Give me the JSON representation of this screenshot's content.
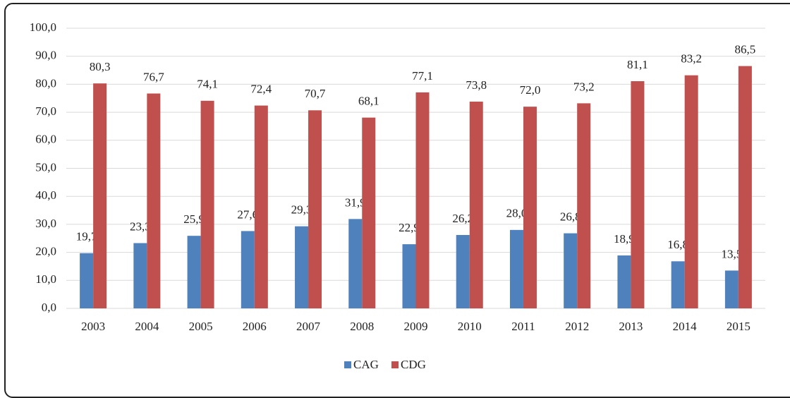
{
  "chart_data": {
    "type": "bar",
    "categories": [
      "2003",
      "2004",
      "2005",
      "2006",
      "2007",
      "2008",
      "2009",
      "2010",
      "2011",
      "2012",
      "2013",
      "2014",
      "2015"
    ],
    "series": [
      {
        "name": "CAG",
        "color": "#4f81bd",
        "values": [
          19.7,
          23.3,
          25.9,
          27.6,
          29.3,
          31.9,
          22.9,
          26.2,
          28.0,
          26.8,
          18.9,
          16.8,
          13.5
        ],
        "value_labels": [
          "19,7",
          "23,3",
          "25,9",
          "27,6",
          "29,3",
          "31,9",
          "22,9",
          "26,2",
          "28,0",
          "26,8",
          "18,9",
          "16,8",
          "13,5"
        ]
      },
      {
        "name": "CDG",
        "color": "#c0504d",
        "values": [
          80.3,
          76.7,
          74.1,
          72.4,
          70.7,
          68.1,
          77.1,
          73.8,
          72.0,
          73.2,
          81.1,
          83.2,
          86.5
        ],
        "value_labels": [
          "80,3",
          "76,7",
          "74,1",
          "72,4",
          "70,7",
          "68,1",
          "77,1",
          "73,8",
          "72,0",
          "73,2",
          "81,1",
          "83,2",
          "86,5"
        ]
      }
    ],
    "ylim": [
      0,
      100
    ],
    "yticks": [
      {
        "value": 0,
        "label": "0,0"
      },
      {
        "value": 10,
        "label": "10,0"
      },
      {
        "value": 20,
        "label": "20,0"
      },
      {
        "value": 30,
        "label": "30,0"
      },
      {
        "value": 40,
        "label": "40,0"
      },
      {
        "value": 50,
        "label": "50,0"
      },
      {
        "value": 60,
        "label": "60,0"
      },
      {
        "value": 70,
        "label": "70,0"
      },
      {
        "value": 80,
        "label": "80,0"
      },
      {
        "value": 90,
        "label": "90,0"
      },
      {
        "value": 100,
        "label": "100,0"
      }
    ],
    "grid": true,
    "legend": "bottom"
  }
}
